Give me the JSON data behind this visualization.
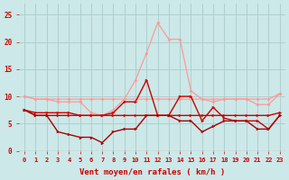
{
  "x": [
    0,
    1,
    2,
    3,
    4,
    5,
    6,
    7,
    8,
    9,
    10,
    11,
    12,
    13,
    14,
    15,
    16,
    17,
    18,
    19,
    20,
    21,
    22,
    23
  ],
  "line_pink_high": [
    10.0,
    9.5,
    9.5,
    9.0,
    9.0,
    9.0,
    7.0,
    6.5,
    7.5,
    9.5,
    13.0,
    18.0,
    23.5,
    20.5,
    20.5,
    11.0,
    9.5,
    9.0,
    9.5,
    9.5,
    9.5,
    8.5,
    8.5,
    10.5
  ],
  "line_pink_flat": [
    10.0,
    9.5,
    9.5,
    9.5,
    9.5,
    9.5,
    9.5,
    9.5,
    9.5,
    9.5,
    9.5,
    9.5,
    9.5,
    9.5,
    9.5,
    9.5,
    9.5,
    9.5,
    9.5,
    9.5,
    9.5,
    9.5,
    9.5,
    10.5
  ],
  "line_red_volatile": [
    7.5,
    6.5,
    6.5,
    6.5,
    6.5,
    6.5,
    6.5,
    6.5,
    7.0,
    9.0,
    9.0,
    13.0,
    6.5,
    6.5,
    10.0,
    10.0,
    5.5,
    8.0,
    6.0,
    5.5,
    5.5,
    5.5,
    4.0,
    6.5
  ],
  "line_red_low": [
    7.5,
    6.5,
    6.5,
    3.5,
    3.0,
    2.5,
    2.5,
    1.5,
    3.5,
    4.0,
    4.0,
    6.5,
    6.5,
    6.5,
    5.5,
    5.5,
    3.5,
    4.5,
    5.5,
    5.5,
    5.5,
    4.0,
    4.0,
    6.5
  ],
  "line_red_flat": [
    7.5,
    7.0,
    7.0,
    7.0,
    7.0,
    6.5,
    6.5,
    6.5,
    6.5,
    6.5,
    6.5,
    6.5,
    6.5,
    6.5,
    6.5,
    6.5,
    6.5,
    6.5,
    6.5,
    6.5,
    6.5,
    6.5,
    6.5,
    7.0
  ],
  "bg_color": "#cce8e8",
  "grid_color": "#aacccc",
  "pink_color": "#ff9999",
  "red_color": "#cc0000",
  "dark_red_color": "#aa0000",
  "xlabel": "Vent moyen/en rafales ( km/h )",
  "ylim": [
    0,
    27
  ],
  "yticks": [
    0,
    5,
    10,
    15,
    20,
    25
  ],
  "tick_color": "#cc0000",
  "xlabel_color": "#cc0000"
}
